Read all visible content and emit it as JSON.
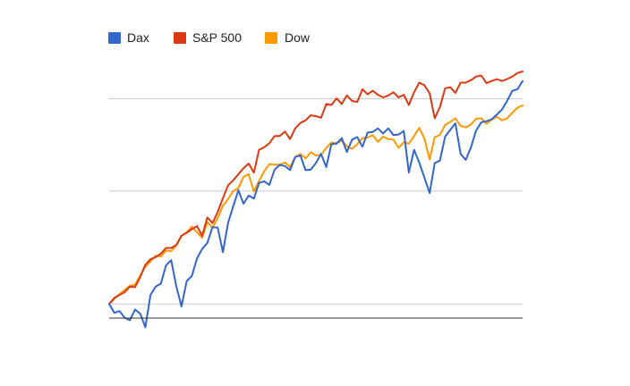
{
  "chart_data": {
    "type": "line",
    "title": "",
    "xlabel": "",
    "ylabel": "",
    "grid": true,
    "legend_position": "top-left",
    "x": [
      0,
      1,
      2,
      3,
      4,
      5,
      6,
      7,
      8,
      9,
      10,
      11,
      12,
      13,
      14,
      15,
      16,
      17,
      18,
      19,
      20,
      21,
      22,
      23,
      24,
      25,
      26,
      27,
      28,
      29,
      30,
      31,
      32,
      33,
      34,
      35,
      36,
      37,
      38,
      39,
      40,
      41,
      42,
      43,
      44,
      45,
      46,
      47,
      48,
      49,
      50,
      51,
      52,
      53,
      54,
      55,
      56,
      57,
      58,
      59,
      60,
      61,
      62,
      63,
      64,
      65,
      66,
      67,
      68,
      69,
      70,
      71,
      72,
      73,
      74,
      75,
      76,
      77,
      78,
      79,
      80
    ],
    "ylim": [
      -15,
      247
    ],
    "series": [
      {
        "name": "Dax",
        "color": "#3366cc",
        "values": [
          0.0,
          -9.4,
          -7.6,
          -14.6,
          -17.3,
          -5.9,
          -10.3,
          -24.8,
          9.7,
          18.4,
          21.6,
          41.0,
          46.5,
          18.4,
          -2.7,
          24.3,
          29.7,
          48.6,
          58.4,
          64.9,
          81.6,
          81.1,
          55.1,
          85.9,
          103.8,
          120.8,
          106.5,
          115.1,
          111.9,
          128.6,
          130.3,
          126.5,
          142.7,
          147.6,
          146.5,
          142.2,
          156.2,
          157.8,
          142.2,
          142.7,
          149.7,
          159.5,
          145.4,
          169.7,
          170.3,
          176.2,
          161.6,
          174.6,
          177.3,
          167.0,
          182.2,
          182.7,
          186.5,
          181.1,
          186.5,
          179.5,
          180.0,
          183.8,
          139.5,
          163.8,
          150.3,
          134.1,
          117.8,
          149.7,
          152.4,
          177.8,
          184.9,
          191.9,
          159.5,
          153.0,
          166.5,
          184.3,
          193.0,
          194.1,
          196.2,
          201.1,
          206.5,
          215.7,
          226.5,
          228.1,
          236.8
        ]
      },
      {
        "name": "S&P 500",
        "color": "#dc3912",
        "values": [
          0.0,
          6.5,
          9.7,
          12.4,
          18.4,
          17.8,
          28.6,
          41.6,
          47.6,
          49.7,
          53.5,
          59.5,
          59.5,
          62.7,
          72.4,
          75.7,
          79.5,
          82.7,
          72.4,
          91.9,
          85.9,
          97.8,
          112.4,
          125.9,
          131.4,
          137.8,
          144.3,
          149.2,
          139.5,
          163.8,
          166.5,
          170.8,
          178.4,
          178.4,
          183.2,
          175.1,
          186.5,
          192.4,
          195.1,
          200.5,
          199.5,
          197.8,
          212.4,
          211.4,
          218.4,
          212.4,
          221.6,
          215.7,
          214.6,
          228.1,
          222.7,
          226.5,
          222.2,
          219.5,
          221.6,
          224.9,
          219.5,
          222.2,
          211.4,
          224.9,
          235.1,
          232.4,
          223.8,
          197.3,
          209.2,
          229.2,
          230.3,
          224.3,
          235.1,
          235.1,
          237.8,
          241.6,
          242.7,
          234.6,
          236.8,
          238.9,
          236.8,
          238.9,
          241.6,
          245.4,
          247.0
        ]
      },
      {
        "name": "Dow",
        "color": "#ff9900",
        "values": [
          0.0,
          5.4,
          10.3,
          15.1,
          19.5,
          20.5,
          30.3,
          39.5,
          45.4,
          51.4,
          50.3,
          56.8,
          56.2,
          62.2,
          72.4,
          76.2,
          82.2,
          76.2,
          70.3,
          87.0,
          81.1,
          91.4,
          104.3,
          111.4,
          120.0,
          123.2,
          135.1,
          137.8,
          119.5,
          130.8,
          141.1,
          148.6,
          148.1,
          148.1,
          150.3,
          145.4,
          156.2,
          159.5,
          154.6,
          161.1,
          157.8,
          158.4,
          165.9,
          171.4,
          170.8,
          173.5,
          167.6,
          164.9,
          169.7,
          176.2,
          176.8,
          179.5,
          172.4,
          177.8,
          175.1,
          174.6,
          165.9,
          171.9,
          170.3,
          178.4,
          187.0,
          175.7,
          153.5,
          177.3,
          179.5,
          190.3,
          193.5,
          197.3,
          189.2,
          187.6,
          190.8,
          196.8,
          197.3,
          191.4,
          195.7,
          198.9,
          195.1,
          197.3,
          203.2,
          208.6,
          210.8
        ]
      }
    ]
  }
}
